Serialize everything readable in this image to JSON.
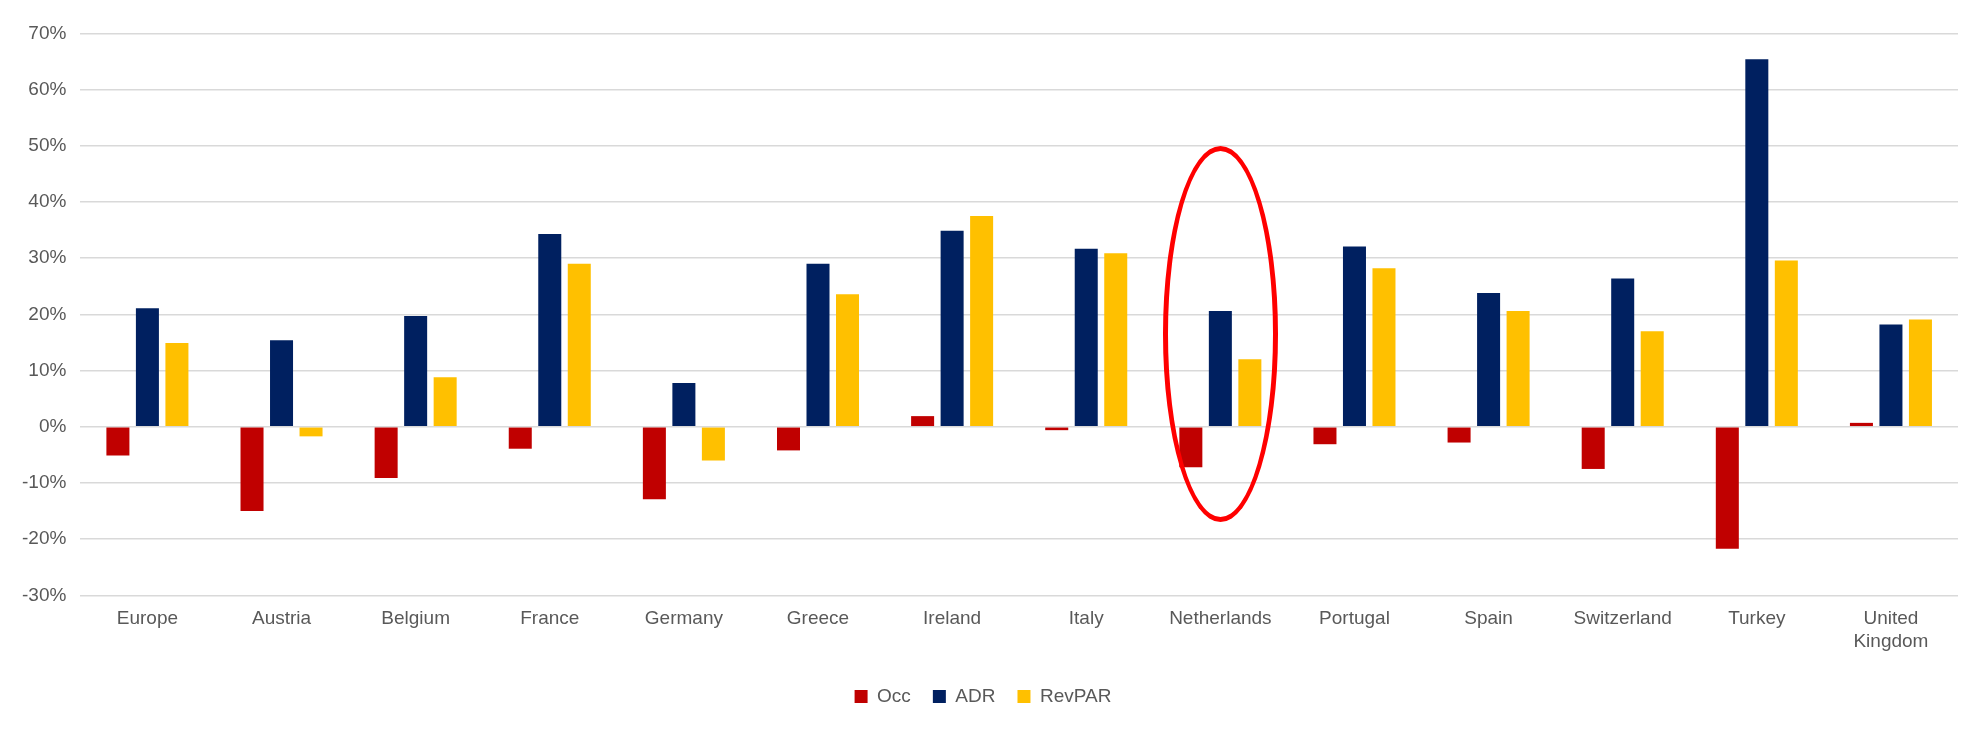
{
  "chart_data": {
    "type": "bar",
    "categories": [
      "Europe",
      "Austria",
      "Belgium",
      "France",
      "Germany",
      "Greece",
      "Ireland",
      "Italy",
      "Netherlands",
      "Portugal",
      "Spain",
      "Switzerland",
      "Turkey",
      "United Kingdom"
    ],
    "series": [
      {
        "name": "Occ",
        "color": "#c00000",
        "values": [
          -5.1,
          -15.0,
          -9.1,
          -3.9,
          -12.9,
          -4.2,
          1.9,
          -0.6,
          -7.2,
          -3.1,
          -2.8,
          -7.5,
          -21.7,
          0.7
        ]
      },
      {
        "name": "ADR",
        "color": "#002060",
        "values": [
          21.1,
          15.4,
          19.7,
          34.3,
          7.8,
          29.0,
          34.9,
          31.7,
          20.6,
          32.1,
          23.8,
          26.4,
          65.4,
          18.2
        ]
      },
      {
        "name": "RevPAR",
        "color": "#ffc000",
        "values": [
          14.9,
          -1.7,
          8.8,
          29.0,
          -6.0,
          23.6,
          37.5,
          30.9,
          12.0,
          28.2,
          20.6,
          17.0,
          29.6,
          19.1
        ]
      }
    ],
    "ylim": [
      -30,
      70
    ],
    "yticks": [
      {
        "value": -30,
        "label": "-30%"
      },
      {
        "value": -20,
        "label": "-20%"
      },
      {
        "value": -10,
        "label": "-10%"
      },
      {
        "value": 0,
        "label": "0%"
      },
      {
        "value": 10,
        "label": "10%"
      },
      {
        "value": 20,
        "label": "20%"
      },
      {
        "value": 30,
        "label": "30%"
      },
      {
        "value": 40,
        "label": "40%"
      },
      {
        "value": 50,
        "label": "50%"
      },
      {
        "value": 60,
        "label": "60%"
      },
      {
        "value": 70,
        "label": "70%"
      }
    ],
    "grid": "y",
    "legend": "bottom"
  }
}
